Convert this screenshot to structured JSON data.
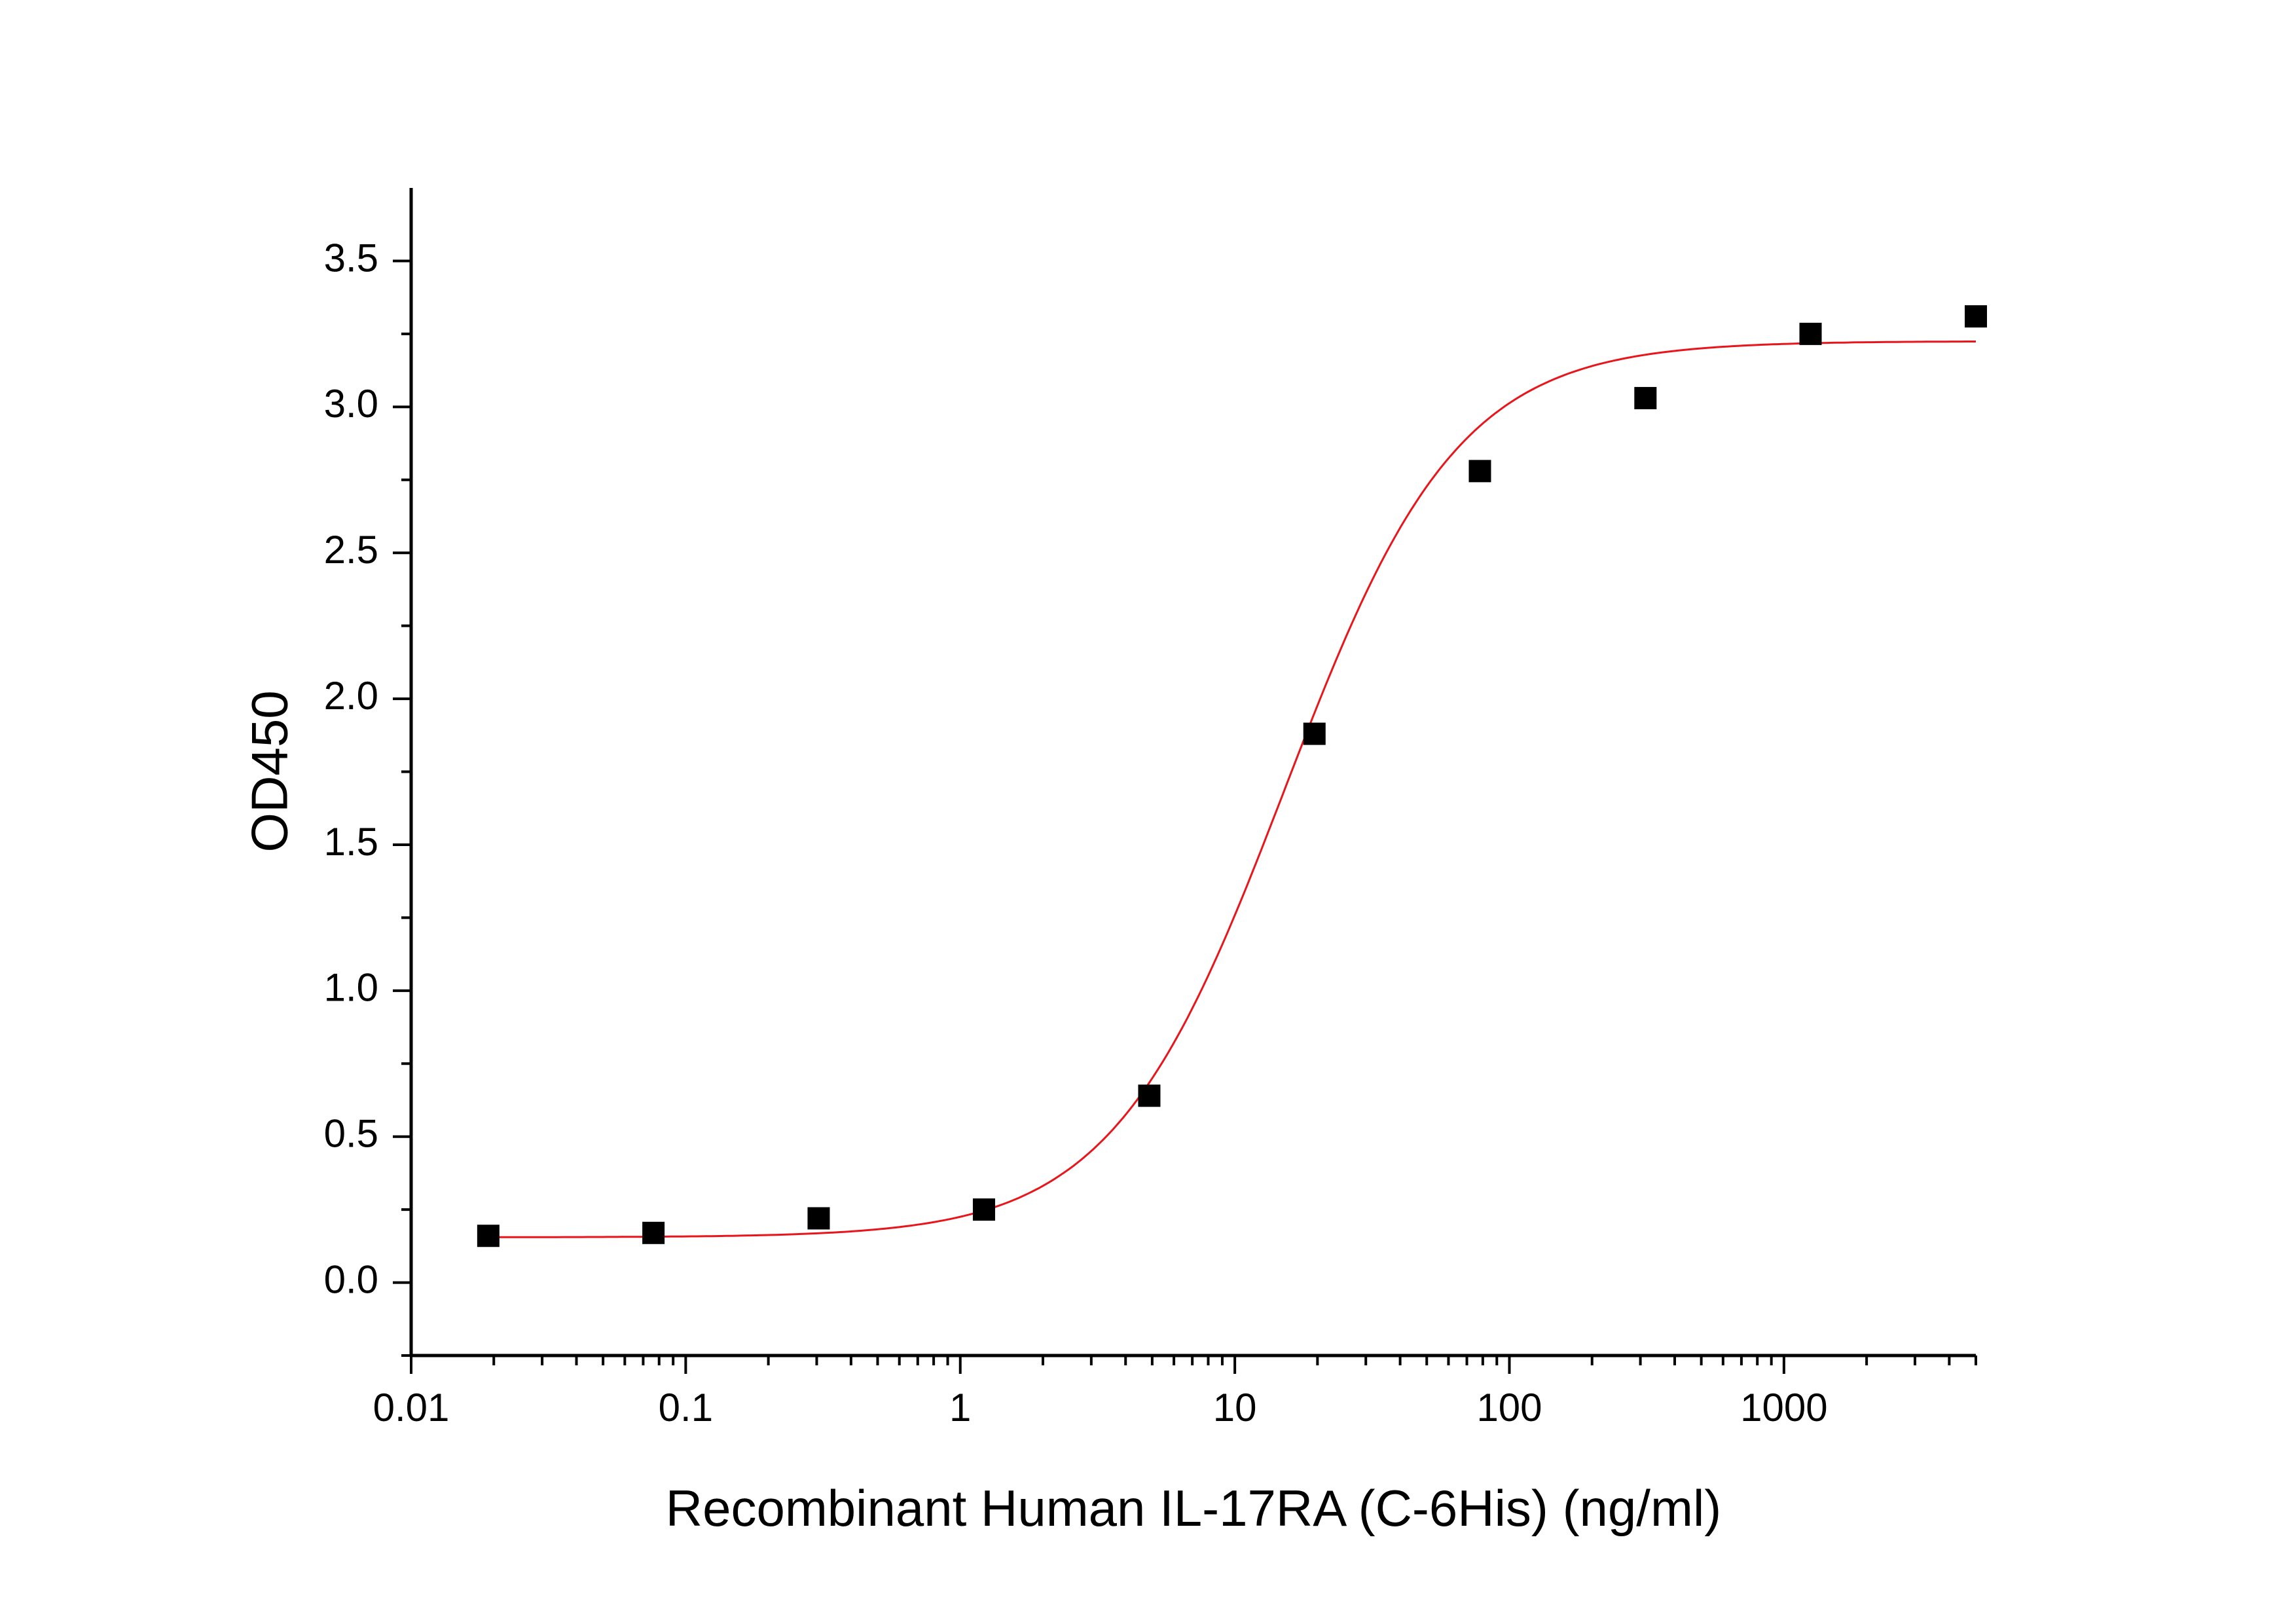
{
  "chart_data": {
    "type": "scatter",
    "title": "",
    "xlabel": "Recombinant Human IL-17RA (C-6His) (ng/ml)",
    "ylabel": "OD450",
    "xscale": "log",
    "xlim": [
      0.01,
      5000
    ],
    "ylim": [
      -0.25,
      3.75
    ],
    "grid": false,
    "legend": "none",
    "x_ticks": [
      0.01,
      0.1,
      1,
      10,
      100,
      1000
    ],
    "x_tick_labels": [
      "0.01",
      "0.1",
      "1",
      "10",
      "100",
      "1000"
    ],
    "y_ticks": [
      0.0,
      0.5,
      1.0,
      1.5,
      2.0,
      2.5,
      3.0,
      3.5
    ],
    "y_tick_labels": [
      "0.0",
      "0.5",
      "1.0",
      "1.5",
      "2.0",
      "2.5",
      "3.0",
      "3.5"
    ],
    "series": [
      {
        "kind": "points",
        "marker": "square",
        "color": "#000000",
        "x": [
          0.0191,
          0.0763,
          0.305,
          1.22,
          4.88,
          19.5,
          78.1,
          313,
          1250,
          5000
        ],
        "y": [
          0.16,
          0.17,
          0.22,
          0.25,
          0.64,
          1.88,
          2.78,
          3.03,
          3.25,
          3.31
        ]
      },
      {
        "kind": "fit",
        "model": "4PL",
        "color": "#e8151b",
        "bottom": 0.155,
        "top": 3.225,
        "ec50": 15.2,
        "hill": 1.38,
        "x_range": [
          0.0191,
          5000
        ]
      }
    ]
  }
}
